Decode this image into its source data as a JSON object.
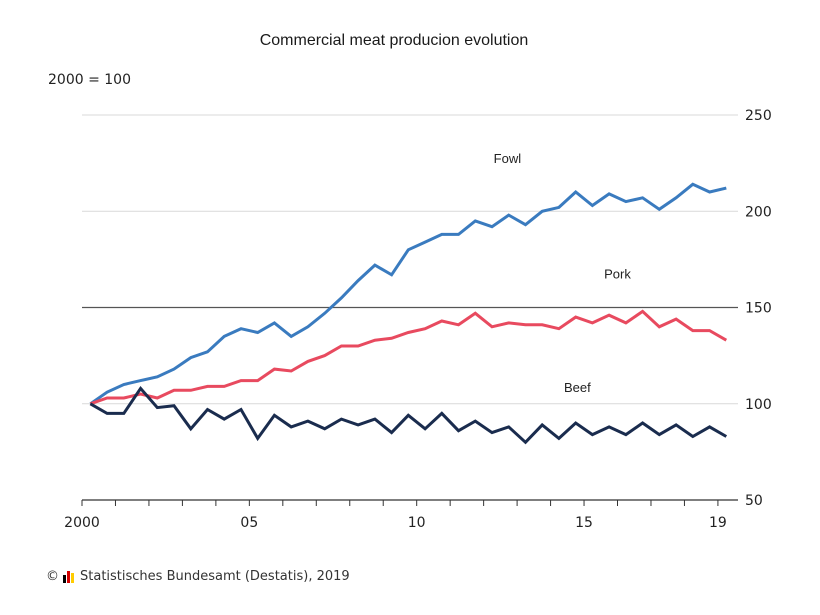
{
  "chart_data": {
    "type": "line",
    "title": "Commercial meat producion evolution",
    "ylabel": "2000 = 100",
    "index_line": 150,
    "ylim": [
      50,
      250
    ],
    "yticks": [
      250,
      200,
      150,
      100,
      50
    ],
    "xlim": [
      2000,
      2019.6
    ],
    "xticks": [
      {
        "value": 2000,
        "label": "2000"
      },
      {
        "value": 2005,
        "label": "05"
      },
      {
        "value": 2010,
        "label": "10"
      },
      {
        "value": 2015,
        "label": "15"
      },
      {
        "value": 2019,
        "label": "19"
      }
    ],
    "series": [
      {
        "name": "Fowl",
        "color": "#3a7bbf",
        "label_pos": [
          2012.3,
          225
        ],
        "x": [
          2000.25,
          2000.75,
          2001.25,
          2001.75,
          2002.25,
          2002.75,
          2003.25,
          2003.75,
          2004.25,
          2004.75,
          2005.25,
          2005.75,
          2006.25,
          2006.75,
          2007.25,
          2007.75,
          2008.25,
          2008.75,
          2009.25,
          2009.75,
          2010.25,
          2010.75,
          2011.25,
          2011.75,
          2012.25,
          2012.75,
          2013.25,
          2013.75,
          2014.25,
          2014.75,
          2015.25,
          2015.75,
          2016.25,
          2016.75,
          2017.25,
          2017.75,
          2018.25,
          2018.75,
          2019.25
        ],
        "values": [
          100,
          106,
          110,
          112,
          114,
          118,
          124,
          127,
          135,
          139,
          137,
          142,
          135,
          140,
          147,
          155,
          164,
          172,
          167,
          180,
          184,
          188,
          188,
          195,
          192,
          198,
          193,
          200,
          202,
          210,
          203,
          209,
          205,
          207,
          201,
          207,
          214,
          210,
          212
        ]
      },
      {
        "name": "Pork",
        "color": "#e84a5f",
        "label_pos": [
          2015.6,
          165
        ],
        "x": [
          2000.25,
          2000.75,
          2001.25,
          2001.75,
          2002.25,
          2002.75,
          2003.25,
          2003.75,
          2004.25,
          2004.75,
          2005.25,
          2005.75,
          2006.25,
          2006.75,
          2007.25,
          2007.75,
          2008.25,
          2008.75,
          2009.25,
          2009.75,
          2010.25,
          2010.75,
          2011.25,
          2011.75,
          2012.25,
          2012.75,
          2013.25,
          2013.75,
          2014.25,
          2014.75,
          2015.25,
          2015.75,
          2016.25,
          2016.75,
          2017.25,
          2017.75,
          2018.25,
          2018.75,
          2019.25
        ],
        "values": [
          100,
          103,
          103,
          105,
          103,
          107,
          107,
          109,
          109,
          112,
          112,
          118,
          117,
          122,
          125,
          130,
          130,
          133,
          134,
          137,
          139,
          143,
          141,
          147,
          140,
          142,
          141,
          141,
          139,
          145,
          142,
          146,
          142,
          148,
          140,
          144,
          138,
          138,
          133
        ]
      },
      {
        "name": "Beef",
        "color": "#1a2c4e",
        "label_pos": [
          2014.4,
          106
        ],
        "x": [
          2000.25,
          2000.75,
          2001.25,
          2001.75,
          2002.25,
          2002.75,
          2003.25,
          2003.75,
          2004.25,
          2004.75,
          2005.25,
          2005.75,
          2006.25,
          2006.75,
          2007.25,
          2007.75,
          2008.25,
          2008.75,
          2009.25,
          2009.75,
          2010.25,
          2010.75,
          2011.25,
          2011.75,
          2012.25,
          2012.75,
          2013.25,
          2013.75,
          2014.25,
          2014.75,
          2015.25,
          2015.75,
          2016.25,
          2016.75,
          2017.25,
          2017.75,
          2018.25,
          2018.75,
          2019.25
        ],
        "values": [
          100,
          95,
          95,
          108,
          98,
          99,
          87,
          97,
          92,
          97,
          82,
          94,
          88,
          91,
          87,
          92,
          89,
          92,
          85,
          94,
          87,
          95,
          86,
          91,
          85,
          88,
          80,
          89,
          82,
          90,
          84,
          88,
          84,
          90,
          84,
          89,
          83,
          88,
          83
        ]
      }
    ]
  },
  "footer": {
    "copyright_symbol": "©",
    "text": "Statistisches Bundesamt (Destatis), 2019",
    "logo_colors": [
      "#000000",
      "#d50000",
      "#ffcc00"
    ]
  }
}
